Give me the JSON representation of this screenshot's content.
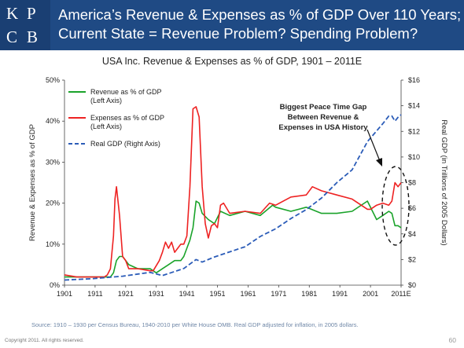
{
  "logo": {
    "letters": [
      "K",
      "P",
      "C",
      "B"
    ]
  },
  "header": {
    "title_line1": "America’s Revenue & Expenses as % of GDP Over 110 Years;",
    "title_line2": "Current State = Revenue Problem? Spending Problem?"
  },
  "colors": {
    "header_bg": "#1f4a84",
    "revenue": "#1aa32a",
    "expenses": "#ee2222",
    "gdp": "#2b5cb8"
  },
  "chart_data": {
    "type": "line",
    "title": "USA Inc. Revenue & Expenses as % of GDP, 1901 – 2011E",
    "ylabel": "Revenue & Expenses as % of GDP",
    "y2label": "Real GDP (in Trillions of 2005 Dollars)",
    "xlim": [
      1901,
      2011
    ],
    "ylim": [
      0,
      50
    ],
    "y2lim": [
      0,
      16
    ],
    "x_ticks": [
      "1901",
      "1911",
      "1921",
      "1931",
      "1941",
      "1951",
      "1961",
      "1971",
      "1981",
      "1991",
      "2001",
      "2011E"
    ],
    "y_ticks": [
      "0%",
      "10%",
      "20%",
      "30%",
      "40%",
      "50%"
    ],
    "y2_ticks": [
      "$0",
      "$2",
      "$4",
      "$6",
      "$8",
      "$10",
      "$12",
      "$14",
      "$16"
    ],
    "legend_position": "top-left",
    "series": [
      {
        "name": "Revenue as % of GDP\n(Left Axis)",
        "axis": "left",
        "style": "solid",
        "color": "#1aa32a",
        "x": [
          1901,
          1905,
          1910,
          1914,
          1916,
          1917,
          1918,
          1919,
          1920,
          1922,
          1925,
          1929,
          1931,
          1933,
          1935,
          1937,
          1939,
          1940,
          1941,
          1942,
          1943,
          1944,
          1945,
          1946,
          1948,
          1950,
          1952,
          1955,
          1960,
          1965,
          1969,
          1970,
          1975,
          1980,
          1985,
          1990,
          1995,
          2000,
          2003,
          2005,
          2007,
          2008,
          2009,
          2010,
          2011
        ],
        "y": [
          2,
          2,
          2,
          2,
          2,
          3,
          6,
          7,
          7,
          5,
          4,
          4,
          3,
          4,
          5,
          6,
          6,
          7,
          9,
          11,
          14,
          20.5,
          20,
          17.5,
          16,
          15,
          18,
          17,
          18,
          17,
          19.5,
          19,
          18,
          19,
          17.5,
          17.5,
          18,
          20.5,
          16,
          17,
          18,
          17.5,
          14.5,
          14.5,
          14
        ]
      },
      {
        "name": "Expenses as % of GDP\n(Left Axis)",
        "axis": "left",
        "style": "solid",
        "color": "#ee2222",
        "x": [
          1901,
          1905,
          1910,
          1914,
          1915,
          1916,
          1917,
          1917.5,
          1918,
          1919,
          1920,
          1921,
          1922,
          1925,
          1929,
          1930,
          1932,
          1933,
          1934,
          1935,
          1936,
          1937,
          1938,
          1939,
          1940,
          1941,
          1942,
          1943,
          1944,
          1945,
          1946,
          1947,
          1948,
          1949,
          1950,
          1951,
          1952,
          1953,
          1955,
          1960,
          1965,
          1968,
          1970,
          1975,
          1980,
          1982,
          1985,
          1990,
          1995,
          2000,
          2001,
          2003,
          2005,
          2007,
          2008,
          2009,
          2010,
          2011
        ],
        "y": [
          2.5,
          2,
          2,
          2,
          2.5,
          4,
          12,
          21,
          24,
          17,
          7,
          6,
          4,
          4,
          3.5,
          3.5,
          6,
          8,
          10.5,
          9,
          10.5,
          8,
          9,
          10,
          10,
          12,
          24,
          43,
          43.5,
          41,
          24,
          15,
          11.5,
          14.5,
          15,
          14,
          19.5,
          20,
          17.5,
          18,
          17.5,
          20,
          19.5,
          21.5,
          22,
          24,
          23,
          22,
          21,
          18.5,
          18.5,
          19.5,
          20,
          19.5,
          20.5,
          25,
          24,
          25
        ]
      },
      {
        "name": "Real GDP (Right Axis)",
        "axis": "right",
        "style": "dashed",
        "color": "#2b5cb8",
        "x": [
          1901,
          1910,
          1920,
          1929,
          1933,
          1940,
          1944,
          1946,
          1950,
          1955,
          1960,
          1965,
          1970,
          1975,
          1980,
          1985,
          1990,
          1995,
          2000,
          2005,
          2007,
          2008,
          2009,
          2010,
          2011
        ],
        "y": [
          0.4,
          0.5,
          0.7,
          1.0,
          0.75,
          1.3,
          2.0,
          1.8,
          2.2,
          2.6,
          3.0,
          3.8,
          4.4,
          5.2,
          5.9,
          6.8,
          8.0,
          9.0,
          11.2,
          12.6,
          13.2,
          13.2,
          12.8,
          13.1,
          13.3
        ]
      }
    ],
    "annotation": {
      "lines": [
        "Biggest Peace Time Gap",
        "Between Revenue &",
        "Expenses in USA History"
      ]
    }
  },
  "footer": {
    "source": "Source: 1910 – 1930 per Census Bureau, 1940-2010 per White House OMB. Real GDP adjusted for inflation, in 2005 dollars.",
    "copyright": "Copyright 2011. All rights reserved.",
    "page": "60"
  }
}
